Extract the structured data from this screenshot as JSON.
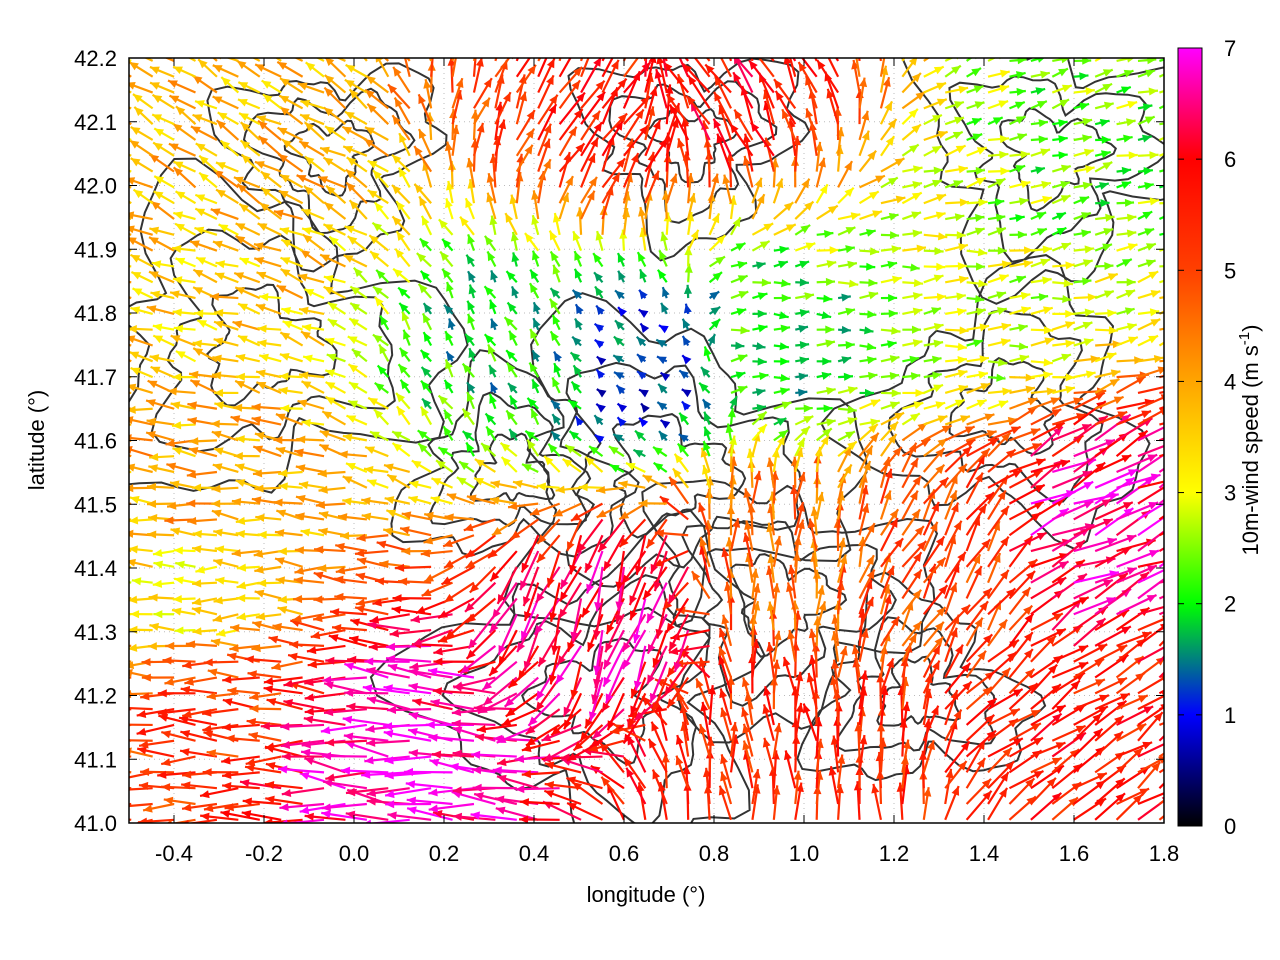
{
  "chart_data": {
    "type": "vector-field",
    "xlabel": "longitude (°)",
    "ylabel": "latitude (°)",
    "xlim": [
      -0.5,
      1.8
    ],
    "ylim": [
      41.0,
      42.2
    ],
    "x_ticks": [
      "-0.4",
      "-0.2",
      "0.0",
      "0.2",
      "0.4",
      "0.6",
      "0.8",
      "1.0",
      "1.2",
      "1.4",
      "1.6",
      "1.8"
    ],
    "y_ticks": [
      "41.0",
      "41.1",
      "41.2",
      "41.3",
      "41.4",
      "41.5",
      "41.6",
      "41.7",
      "41.8",
      "41.9",
      "42.0",
      "42.1",
      "42.2"
    ],
    "grid": "dotted",
    "colorbar": {
      "label_main": "10m-wind speed (m s",
      "label_sup": "-1",
      "label_end": ")",
      "range": [
        0,
        7
      ],
      "ticks": [
        "0",
        "1",
        "2",
        "3",
        "4",
        "5",
        "6",
        "7"
      ],
      "colors": [
        "#000000",
        "#0000ff",
        "#00ff00",
        "#ffff00",
        "#ffa500",
        "#ff0000",
        "#ff00ff"
      ]
    },
    "contour_color": "#333333",
    "regions": [
      {
        "lon": -0.25,
        "lat": 42.05,
        "speed": 3.8,
        "dir_deg": 150
      },
      {
        "lon": -0.3,
        "lat": 41.8,
        "speed": 3.6,
        "dir_deg": 165
      },
      {
        "lon": -0.3,
        "lat": 41.5,
        "speed": 4.0,
        "dir_deg": 175
      },
      {
        "lon": -0.35,
        "lat": 41.35,
        "speed": 3.2,
        "dir_deg": 180
      },
      {
        "lon": -0.3,
        "lat": 41.2,
        "speed": 5.2,
        "dir_deg": 180
      },
      {
        "lon": 0.1,
        "lat": 41.12,
        "speed": 6.8,
        "dir_deg": 175
      },
      {
        "lon": 0.35,
        "lat": 41.75,
        "speed": 1.9,
        "dir_deg": 120
      },
      {
        "lon": 0.65,
        "lat": 41.7,
        "speed": 1.1,
        "dir_deg": 140
      },
      {
        "lon": 0.95,
        "lat": 41.75,
        "speed": 2.0,
        "dir_deg": 0
      },
      {
        "lon": 1.35,
        "lat": 41.8,
        "speed": 2.8,
        "dir_deg": 5
      },
      {
        "lon": 1.6,
        "lat": 42.05,
        "speed": 2.4,
        "dir_deg": 15
      },
      {
        "lon": 0.55,
        "lat": 42.1,
        "speed": 5.5,
        "dir_deg": 60
      },
      {
        "lon": 0.8,
        "lat": 42.15,
        "speed": 5.8,
        "dir_deg": 120
      },
      {
        "lon": 0.6,
        "lat": 41.35,
        "speed": 6.4,
        "dir_deg": 250
      },
      {
        "lon": 0.95,
        "lat": 41.4,
        "speed": 4.6,
        "dir_deg": 90
      },
      {
        "lon": 1.3,
        "lat": 41.4,
        "speed": 5.0,
        "dir_deg": 60
      },
      {
        "lon": 1.6,
        "lat": 41.15,
        "speed": 5.6,
        "dir_deg": 35
      },
      {
        "lon": 1.6,
        "lat": 41.45,
        "speed": 6.6,
        "dir_deg": 25
      },
      {
        "lon": 1.0,
        "lat": 41.1,
        "speed": 5.4,
        "dir_deg": 95
      }
    ]
  }
}
